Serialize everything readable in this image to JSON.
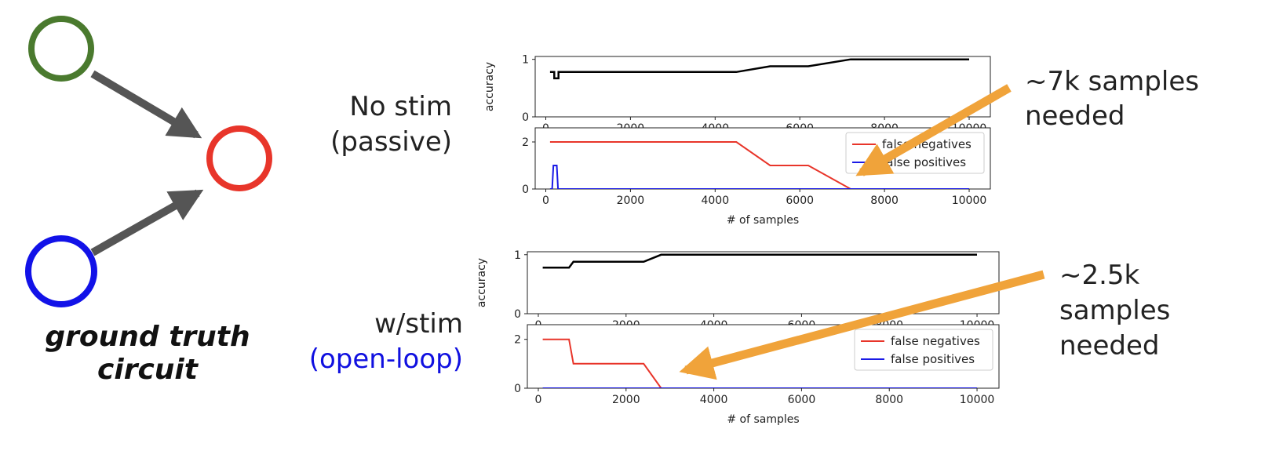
{
  "circuit": {
    "caption_line1": "ground truth",
    "caption_line2": "circuit",
    "colors": {
      "node_top": "#4a7a2e",
      "node_middle": "#e8352a",
      "node_bottom": "#1212e8",
      "arrow": "#555555"
    }
  },
  "rows": [
    {
      "label_line1": "No stim",
      "label_line2": "(passive)",
      "label_line2_color": "#222222"
    },
    {
      "label_line1": "w/stim",
      "label_line2": "(open-loop)",
      "label_line2_color": "#1010e0"
    }
  ],
  "annotations": [
    {
      "lines": [
        "~7k samples",
        "needed"
      ]
    },
    {
      "lines": [
        "~2.5k",
        "samples",
        "needed"
      ]
    }
  ],
  "colors": {
    "accuracy": "#000000",
    "false_negatives": "#e8352a",
    "false_positives": "#1a1ae6",
    "annotation_arrow": "#f0a33a"
  },
  "chart_data": [
    {
      "type": "line",
      "ylabel": "accuracy",
      "xlim": [
        -250,
        10500
      ],
      "ylim": [
        0,
        1.05
      ],
      "yticks": [
        0,
        1
      ],
      "xticks": [
        0,
        2000,
        4000,
        6000,
        8000,
        10000
      ],
      "series": [
        {
          "values": [
            [
              100,
              0.78
            ],
            [
              200,
              0.78
            ],
            [
              200,
              0.67
            ],
            [
              300,
              0.67
            ],
            [
              300,
              0.78
            ],
            [
              4500,
              0.78
            ],
            [
              5300,
              0.88
            ],
            [
              6200,
              0.88
            ],
            [
              7200,
              1.0
            ],
            [
              10000,
              1.0
            ]
          ]
        }
      ]
    },
    {
      "type": "line",
      "xlabel": "# of samples",
      "xlim": [
        -250,
        10500
      ],
      "ylim": [
        0,
        2.6
      ],
      "yticks": [
        0,
        2
      ],
      "xticks": [
        0,
        2000,
        4000,
        6000,
        8000,
        10000
      ],
      "legend": "top-right",
      "series": [
        {
          "name": "false negatives",
          "values": [
            [
              100,
              2
            ],
            [
              4500,
              2
            ],
            [
              5300,
              1
            ],
            [
              6200,
              1
            ],
            [
              7200,
              0
            ],
            [
              10000,
              0
            ]
          ]
        },
        {
          "name": "false positives",
          "values": [
            [
              100,
              0
            ],
            [
              150,
              0
            ],
            [
              180,
              1
            ],
            [
              260,
              1
            ],
            [
              290,
              0
            ],
            [
              10000,
              0
            ]
          ]
        }
      ]
    },
    {
      "type": "line",
      "ylabel": "accuracy",
      "xlim": [
        -250,
        10500
      ],
      "ylim": [
        0,
        1.05
      ],
      "yticks": [
        0,
        1
      ],
      "xticks": [
        0,
        2000,
        4000,
        6000,
        8000,
        10000
      ],
      "series": [
        {
          "values": [
            [
              100,
              0.78
            ],
            [
              700,
              0.78
            ],
            [
              800,
              0.88
            ],
            [
              2400,
              0.88
            ],
            [
              2800,
              1.0
            ],
            [
              10000,
              1.0
            ]
          ]
        }
      ]
    },
    {
      "type": "line",
      "xlabel": "# of samples",
      "xlim": [
        -250,
        10500
      ],
      "ylim": [
        0,
        2.6
      ],
      "yticks": [
        0,
        2
      ],
      "xticks": [
        0,
        2000,
        4000,
        6000,
        8000,
        10000
      ],
      "legend": "top-right",
      "series": [
        {
          "name": "false negatives",
          "values": [
            [
              100,
              2
            ],
            [
              700,
              2
            ],
            [
              800,
              1
            ],
            [
              2400,
              1
            ],
            [
              2800,
              0
            ],
            [
              10000,
              0
            ]
          ]
        },
        {
          "name": "false positives",
          "values": [
            [
              100,
              0
            ],
            [
              10000,
              0
            ]
          ]
        }
      ]
    }
  ]
}
